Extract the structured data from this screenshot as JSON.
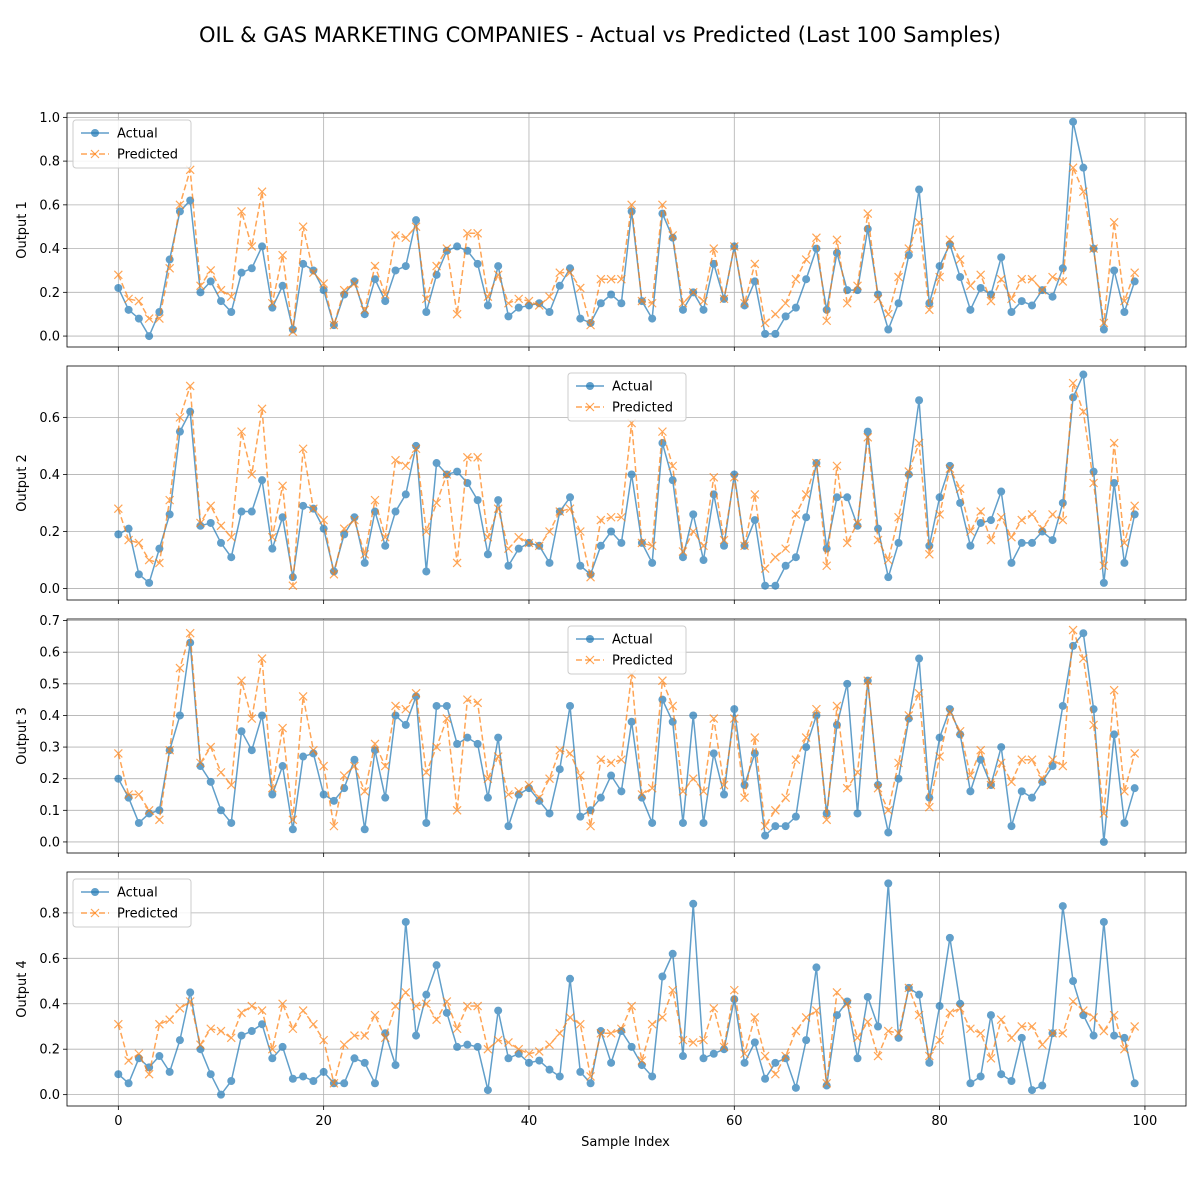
{
  "title": "OIL & GAS MARKETING COMPANIES - Actual vs Predicted (Last 100 Samples)",
  "xlabel": "Sample Index",
  "legend": {
    "actual": "Actual",
    "predicted": "Predicted"
  },
  "colors": {
    "actual": "#1f77b4",
    "predicted": "#ff7f0e",
    "grid": "#b0b0b0"
  },
  "chart_data": [
    {
      "type": "line",
      "ylabel": "Output 1",
      "xlim": [
        -5,
        104
      ],
      "ylim": [
        -0.05,
        1.02
      ],
      "xticks": [
        0,
        20,
        40,
        60,
        80,
        100
      ],
      "yticks": [
        0.0,
        0.2,
        0.4,
        0.6,
        0.8,
        1.0
      ],
      "ytick_labels": [
        "0.0",
        "0.2",
        "0.4",
        "0.6",
        "0.8",
        "1.0"
      ],
      "legend_position": "top-left",
      "grid": true,
      "series": [
        {
          "name": "Actual",
          "values": [
            0.22,
            0.12,
            0.08,
            0.0,
            0.11,
            0.35,
            0.57,
            0.62,
            0.2,
            0.25,
            0.16,
            0.11,
            0.29,
            0.31,
            0.41,
            0.13,
            0.23,
            0.03,
            0.33,
            0.3,
            0.21,
            0.05,
            0.19,
            0.25,
            0.1,
            0.26,
            0.16,
            0.3,
            0.32,
            0.53,
            0.11,
            0.28,
            0.39,
            0.41,
            0.39,
            0.33,
            0.14,
            0.32,
            0.09,
            0.13,
            0.14,
            0.15,
            0.11,
            0.23,
            0.31,
            0.08,
            0.06,
            0.15,
            0.19,
            0.15,
            0.57,
            0.16,
            0.08,
            0.56,
            0.45,
            0.12,
            0.2,
            0.12,
            0.33,
            0.17,
            0.41,
            0.14,
            0.25,
            0.01,
            0.01,
            0.09,
            0.13,
            0.26,
            0.4,
            0.12,
            0.38,
            0.21,
            0.21,
            0.49,
            0.19,
            0.03,
            0.15,
            0.37,
            0.67,
            0.15,
            0.32,
            0.42,
            0.27,
            0.12,
            0.22,
            0.19,
            0.36,
            0.11,
            0.16,
            0.14,
            0.21,
            0.18,
            0.31,
            0.98,
            0.77,
            0.4,
            0.03,
            0.3,
            0.11,
            0.25
          ]
        },
        {
          "name": "Predicted",
          "values": [
            0.28,
            0.17,
            0.16,
            0.08,
            0.08,
            0.31,
            0.6,
            0.76,
            0.23,
            0.3,
            0.21,
            0.18,
            0.57,
            0.41,
            0.66,
            0.15,
            0.37,
            0.02,
            0.5,
            0.29,
            0.24,
            0.05,
            0.21,
            0.24,
            0.12,
            0.32,
            0.19,
            0.46,
            0.45,
            0.5,
            0.17,
            0.32,
            0.4,
            0.1,
            0.47,
            0.47,
            0.18,
            0.28,
            0.15,
            0.17,
            0.16,
            0.14,
            0.18,
            0.29,
            0.29,
            0.22,
            0.05,
            0.26,
            0.26,
            0.26,
            0.6,
            0.16,
            0.15,
            0.6,
            0.46,
            0.15,
            0.2,
            0.16,
            0.4,
            0.17,
            0.41,
            0.15,
            0.33,
            0.06,
            0.1,
            0.15,
            0.26,
            0.35,
            0.45,
            0.07,
            0.44,
            0.15,
            0.23,
            0.56,
            0.17,
            0.1,
            0.27,
            0.4,
            0.52,
            0.12,
            0.27,
            0.44,
            0.35,
            0.23,
            0.28,
            0.16,
            0.26,
            0.17,
            0.26,
            0.26,
            0.21,
            0.27,
            0.25,
            0.77,
            0.66,
            0.4,
            0.06,
            0.52,
            0.16,
            0.29
          ]
        }
      ]
    },
    {
      "type": "line",
      "ylabel": "Output 2",
      "xlim": [
        -5,
        104
      ],
      "ylim": [
        -0.04,
        0.78
      ],
      "xticks": [
        0,
        20,
        40,
        60,
        80,
        100
      ],
      "yticks": [
        0.0,
        0.2,
        0.4,
        0.6
      ],
      "ytick_labels": [
        "0.0",
        "0.2",
        "0.4",
        "0.6"
      ],
      "legend_position": "top-center",
      "grid": true,
      "series": [
        {
          "name": "Actual",
          "values": [
            0.19,
            0.21,
            0.05,
            0.02,
            0.14,
            0.26,
            0.55,
            0.62,
            0.22,
            0.23,
            0.16,
            0.11,
            0.27,
            0.27,
            0.38,
            0.14,
            0.25,
            0.04,
            0.29,
            0.28,
            0.21,
            0.06,
            0.19,
            0.25,
            0.09,
            0.27,
            0.15,
            0.27,
            0.33,
            0.5,
            0.06,
            0.44,
            0.4,
            0.41,
            0.37,
            0.31,
            0.12,
            0.31,
            0.08,
            0.14,
            0.16,
            0.15,
            0.09,
            0.27,
            0.32,
            0.08,
            0.05,
            0.15,
            0.2,
            0.16,
            0.4,
            0.16,
            0.09,
            0.51,
            0.38,
            0.11,
            0.26,
            0.1,
            0.33,
            0.15,
            0.4,
            0.15,
            0.24,
            0.01,
            0.01,
            0.08,
            0.11,
            0.25,
            0.44,
            0.14,
            0.32,
            0.32,
            0.22,
            0.55,
            0.21,
            0.04,
            0.16,
            0.4,
            0.66,
            0.15,
            0.32,
            0.43,
            0.3,
            0.15,
            0.23,
            0.24,
            0.34,
            0.09,
            0.16,
            0.16,
            0.2,
            0.17,
            0.3,
            0.67,
            0.75,
            0.41,
            0.02,
            0.37,
            0.09,
            0.26
          ]
        },
        {
          "name": "Predicted",
          "values": [
            0.28,
            0.17,
            0.16,
            0.1,
            0.09,
            0.31,
            0.6,
            0.71,
            0.23,
            0.29,
            0.22,
            0.18,
            0.55,
            0.4,
            0.63,
            0.18,
            0.36,
            0.01,
            0.49,
            0.28,
            0.24,
            0.05,
            0.21,
            0.24,
            0.12,
            0.31,
            0.18,
            0.45,
            0.43,
            0.49,
            0.2,
            0.3,
            0.4,
            0.09,
            0.46,
            0.46,
            0.18,
            0.28,
            0.14,
            0.18,
            0.16,
            0.15,
            0.2,
            0.27,
            0.28,
            0.2,
            0.04,
            0.24,
            0.25,
            0.25,
            0.58,
            0.16,
            0.15,
            0.55,
            0.43,
            0.13,
            0.2,
            0.15,
            0.39,
            0.17,
            0.39,
            0.15,
            0.33,
            0.07,
            0.11,
            0.14,
            0.26,
            0.33,
            0.44,
            0.08,
            0.43,
            0.16,
            0.23,
            0.53,
            0.17,
            0.1,
            0.25,
            0.41,
            0.51,
            0.12,
            0.26,
            0.42,
            0.35,
            0.2,
            0.27,
            0.17,
            0.25,
            0.18,
            0.24,
            0.26,
            0.21,
            0.26,
            0.24,
            0.72,
            0.62,
            0.37,
            0.08,
            0.51,
            0.16,
            0.29
          ]
        }
      ]
    },
    {
      "type": "line",
      "ylabel": "Output 3",
      "xlim": [
        -5,
        104
      ],
      "ylim": [
        -0.035,
        0.705
      ],
      "xticks": [
        0,
        20,
        40,
        60,
        80,
        100
      ],
      "yticks": [
        0.0,
        0.1,
        0.2,
        0.3,
        0.4,
        0.5,
        0.6,
        0.7
      ],
      "ytick_labels": [
        "0.0",
        "0.1",
        "0.2",
        "0.3",
        "0.4",
        "0.5",
        "0.6",
        "0.7"
      ],
      "legend_position": "top-center",
      "grid": true,
      "series": [
        {
          "name": "Actual",
          "values": [
            0.2,
            0.14,
            0.06,
            0.09,
            0.1,
            0.29,
            0.4,
            0.63,
            0.24,
            0.19,
            0.1,
            0.06,
            0.35,
            0.29,
            0.4,
            0.15,
            0.24,
            0.04,
            0.27,
            0.28,
            0.15,
            0.13,
            0.17,
            0.26,
            0.04,
            0.29,
            0.14,
            0.4,
            0.37,
            0.46,
            0.06,
            0.43,
            0.43,
            0.31,
            0.33,
            0.31,
            0.14,
            0.33,
            0.05,
            0.15,
            0.17,
            0.13,
            0.09,
            0.23,
            0.43,
            0.08,
            0.1,
            0.14,
            0.21,
            0.16,
            0.38,
            0.14,
            0.06,
            0.45,
            0.38,
            0.06,
            0.4,
            0.06,
            0.28,
            0.15,
            0.42,
            0.18,
            0.28,
            0.02,
            0.05,
            0.05,
            0.08,
            0.3,
            0.4,
            0.09,
            0.37,
            0.5,
            0.09,
            0.51,
            0.18,
            0.03,
            0.2,
            0.39,
            0.58,
            0.14,
            0.33,
            0.42,
            0.34,
            0.16,
            0.26,
            0.18,
            0.3,
            0.05,
            0.16,
            0.14,
            0.19,
            0.24,
            0.43,
            0.62,
            0.66,
            0.42,
            0.0,
            0.34,
            0.06,
            0.17
          ]
        },
        {
          "name": "Predicted",
          "values": [
            0.28,
            0.15,
            0.15,
            0.1,
            0.07,
            0.29,
            0.55,
            0.66,
            0.25,
            0.3,
            0.22,
            0.18,
            0.51,
            0.39,
            0.58,
            0.17,
            0.36,
            0.07,
            0.46,
            0.29,
            0.24,
            0.05,
            0.21,
            0.24,
            0.16,
            0.31,
            0.24,
            0.43,
            0.42,
            0.47,
            0.22,
            0.3,
            0.39,
            0.1,
            0.45,
            0.44,
            0.2,
            0.27,
            0.15,
            0.16,
            0.18,
            0.14,
            0.2,
            0.29,
            0.28,
            0.21,
            0.05,
            0.26,
            0.25,
            0.26,
            0.53,
            0.15,
            0.17,
            0.51,
            0.43,
            0.16,
            0.2,
            0.16,
            0.39,
            0.18,
            0.39,
            0.14,
            0.33,
            0.05,
            0.1,
            0.14,
            0.26,
            0.33,
            0.42,
            0.07,
            0.43,
            0.17,
            0.22,
            0.51,
            0.17,
            0.1,
            0.25,
            0.4,
            0.47,
            0.11,
            0.27,
            0.41,
            0.35,
            0.21,
            0.29,
            0.18,
            0.25,
            0.19,
            0.26,
            0.26,
            0.2,
            0.26,
            0.24,
            0.67,
            0.58,
            0.37,
            0.09,
            0.48,
            0.16,
            0.28
          ]
        }
      ]
    },
    {
      "type": "line",
      "ylabel": "Output 4",
      "xlim": [
        -5,
        104
      ],
      "ylim": [
        -0.05,
        0.98
      ],
      "xticks": [
        0,
        20,
        40,
        60,
        80,
        100
      ],
      "yticks": [
        0.0,
        0.2,
        0.4,
        0.6,
        0.8
      ],
      "ytick_labels": [
        "0.0",
        "0.2",
        "0.4",
        "0.6",
        "0.8"
      ],
      "legend_position": "top-left",
      "grid": true,
      "series": [
        {
          "name": "Actual",
          "values": [
            0.09,
            0.05,
            0.16,
            0.12,
            0.17,
            0.1,
            0.24,
            0.45,
            0.2,
            0.09,
            0.0,
            0.06,
            0.26,
            0.28,
            0.31,
            0.16,
            0.21,
            0.07,
            0.08,
            0.06,
            0.1,
            0.05,
            0.05,
            0.16,
            0.14,
            0.05,
            0.27,
            0.13,
            0.76,
            0.26,
            0.44,
            0.57,
            0.36,
            0.21,
            0.22,
            0.21,
            0.02,
            0.37,
            0.16,
            0.18,
            0.14,
            0.15,
            0.11,
            0.08,
            0.51,
            0.1,
            0.05,
            0.28,
            0.14,
            0.28,
            0.21,
            0.13,
            0.08,
            0.52,
            0.62,
            0.17,
            0.84,
            0.16,
            0.18,
            0.2,
            0.42,
            0.14,
            0.23,
            0.07,
            0.14,
            0.16,
            0.03,
            0.24,
            0.56,
            0.04,
            0.35,
            0.41,
            0.16,
            0.43,
            0.3,
            0.93,
            0.25,
            0.47,
            0.44,
            0.14,
            0.39,
            0.69,
            0.4,
            0.05,
            0.08,
            0.35,
            0.09,
            0.06,
            0.25,
            0.02,
            0.04,
            0.27,
            0.83,
            0.5,
            0.35,
            0.26,
            0.76,
            0.26,
            0.25,
            0.05
          ]
        },
        {
          "name": "Predicted",
          "values": [
            0.31,
            0.15,
            0.18,
            0.09,
            0.31,
            0.33,
            0.38,
            0.41,
            0.22,
            0.29,
            0.28,
            0.25,
            0.36,
            0.39,
            0.37,
            0.2,
            0.4,
            0.29,
            0.37,
            0.31,
            0.24,
            0.05,
            0.22,
            0.26,
            0.26,
            0.35,
            0.25,
            0.39,
            0.45,
            0.39,
            0.4,
            0.33,
            0.41,
            0.29,
            0.39,
            0.39,
            0.2,
            0.24,
            0.23,
            0.2,
            0.18,
            0.19,
            0.22,
            0.27,
            0.34,
            0.31,
            0.08,
            0.27,
            0.27,
            0.29,
            0.39,
            0.15,
            0.31,
            0.34,
            0.46,
            0.24,
            0.23,
            0.24,
            0.38,
            0.21,
            0.46,
            0.18,
            0.34,
            0.17,
            0.09,
            0.17,
            0.28,
            0.34,
            0.37,
            0.05,
            0.45,
            0.4,
            0.25,
            0.32,
            0.17,
            0.28,
            0.27,
            0.47,
            0.35,
            0.17,
            0.24,
            0.36,
            0.38,
            0.29,
            0.27,
            0.16,
            0.33,
            0.25,
            0.3,
            0.3,
            0.22,
            0.27,
            0.27,
            0.41,
            0.37,
            0.34,
            0.28,
            0.35,
            0.2,
            0.3
          ]
        }
      ]
    }
  ]
}
